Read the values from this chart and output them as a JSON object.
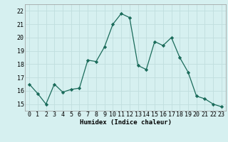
{
  "x": [
    0,
    1,
    2,
    3,
    4,
    5,
    6,
    7,
    8,
    9,
    10,
    11,
    12,
    13,
    14,
    15,
    16,
    17,
    18,
    19,
    20,
    21,
    22,
    23
  ],
  "y": [
    16.5,
    15.8,
    15.0,
    16.5,
    15.9,
    16.1,
    16.2,
    18.3,
    18.2,
    19.3,
    21.0,
    21.8,
    21.5,
    17.9,
    17.6,
    19.7,
    19.4,
    20.0,
    18.5,
    17.4,
    15.6,
    15.4,
    15.0,
    14.8
  ],
  "line_color": "#1a6b5a",
  "marker": "D",
  "marker_size": 2.2,
  "bg_color": "#d6f0f0",
  "grid_color": "#c0dede",
  "xlabel": "Humidex (Indice chaleur)",
  "ylim": [
    14.5,
    22.5
  ],
  "xlim": [
    -0.5,
    23.5
  ],
  "yticks": [
    15,
    16,
    17,
    18,
    19,
    20,
    21,
    22
  ],
  "xticks": [
    0,
    1,
    2,
    3,
    4,
    5,
    6,
    7,
    8,
    9,
    10,
    11,
    12,
    13,
    14,
    15,
    16,
    17,
    18,
    19,
    20,
    21,
    22,
    23
  ],
  "xtick_labels": [
    "0",
    "1",
    "2",
    "3",
    "4",
    "5",
    "6",
    "7",
    "8",
    "9",
    "10",
    "11",
    "12",
    "13",
    "14",
    "15",
    "16",
    "17",
    "18",
    "19",
    "20",
    "21",
    "22",
    "23"
  ],
  "axis_fontsize": 6.5,
  "tick_fontsize": 6.0
}
